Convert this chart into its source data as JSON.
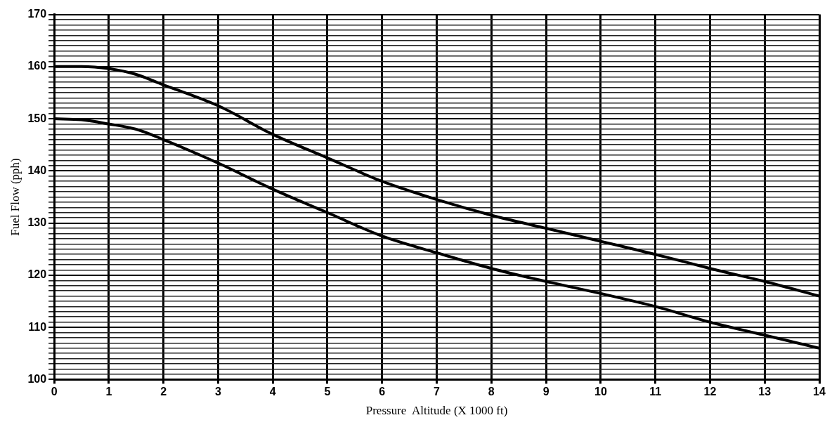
{
  "chart_data": {
    "type": "line",
    "xlabel": "Pressure  Altitude (X 1000 ft)",
    "ylabel": "Fuel Flow (pph)",
    "xlim": [
      0,
      14
    ],
    "xticks": [
      0,
      1,
      2,
      3,
      4,
      5,
      6,
      7,
      8,
      9,
      10,
      11,
      12,
      13,
      14
    ],
    "ylim": [
      100,
      170
    ],
    "yticks": [
      100,
      {
        "value": 101,
        "label": null
      },
      {
        "value": 102,
        "label": null
      },
      {
        "value": 103,
        "label": null
      },
      {
        "value": 104,
        "label": null
      },
      {
        "value": 105,
        "label": null
      },
      {
        "value": 106,
        "label": null
      },
      {
        "value": 107,
        "label": null
      },
      {
        "value": 108,
        "label": null
      },
      {
        "value": 109,
        "label": null
      },
      110,
      {
        "value": 111,
        "label": null
      },
      {
        "value": 112,
        "label": null
      },
      {
        "value": 113,
        "label": null
      },
      {
        "value": 114,
        "label": null
      },
      {
        "value": 115,
        "label": null
      },
      {
        "value": 116,
        "label": null
      },
      {
        "value": 117,
        "label": null
      },
      {
        "value": 118,
        "label": null
      },
      {
        "value": 119,
        "label": null
      },
      120,
      {
        "value": 121,
        "label": null
      },
      {
        "value": 122,
        "label": null
      },
      {
        "value": 123,
        "label": null
      },
      {
        "value": 124,
        "label": null
      },
      {
        "value": 125,
        "label": null
      },
      {
        "value": 126,
        "label": null
      },
      {
        "value": 127,
        "label": null
      },
      {
        "value": 128,
        "label": null
      },
      {
        "value": 129,
        "label": null
      },
      130,
      {
        "value": 131,
        "label": null
      },
      {
        "value": 132,
        "label": null
      },
      {
        "value": 133,
        "label": null
      },
      {
        "value": 134,
        "label": null
      },
      {
        "value": 135,
        "label": null
      },
      {
        "value": 136,
        "label": null
      },
      {
        "value": 137,
        "label": null
      },
      {
        "value": 138,
        "label": null
      },
      {
        "value": 139,
        "label": null
      },
      140,
      {
        "value": 141,
        "label": null
      },
      {
        "value": 142,
        "label": null
      },
      {
        "value": 143,
        "label": null
      },
      {
        "value": 144,
        "label": null
      },
      {
        "value": 145,
        "label": null
      },
      {
        "value": 146,
        "label": null
      },
      {
        "value": 147,
        "label": null
      },
      {
        "value": 148,
        "label": null
      },
      {
        "value": 149,
        "label": null
      },
      150,
      {
        "value": 151,
        "label": null
      },
      {
        "value": 152,
        "label": null
      },
      {
        "value": 153,
        "label": null
      },
      {
        "value": 154,
        "label": null
      },
      {
        "value": 155,
        "label": null
      },
      {
        "value": 156,
        "label": null
      },
      {
        "value": 157,
        "label": null
      },
      {
        "value": 158,
        "label": null
      },
      {
        "value": 159,
        "label": null
      },
      160,
      {
        "value": 161,
        "label": null
      },
      {
        "value": 162,
        "label": null
      },
      {
        "value": 163,
        "label": null
      },
      {
        "value": 164,
        "label": null
      },
      {
        "value": 165,
        "label": null
      },
      {
        "value": 166,
        "label": null
      },
      {
        "value": 167,
        "label": null
      },
      {
        "value": 168,
        "label": null
      },
      {
        "value": 169,
        "label": null
      },
      170
    ],
    "grid": true,
    "marker": "none",
    "line_style": "solid",
    "series": [
      {
        "color": "#000000",
        "x": [
          0,
          0.5,
          1,
          1.5,
          2,
          3,
          4,
          5,
          6,
          7,
          8,
          9,
          10,
          11,
          12,
          13,
          14
        ],
        "values": [
          160,
          160,
          159.6,
          158.5,
          156.5,
          152.5,
          147,
          142.5,
          138,
          134.5,
          131.5,
          129,
          126.5,
          124,
          121.3,
          118.8,
          116
        ]
      },
      {
        "color": "#000000",
        "x": [
          0,
          0.5,
          1,
          1.5,
          2,
          3,
          4,
          5,
          6,
          7,
          8,
          9,
          10,
          11,
          12,
          13,
          14
        ],
        "values": [
          150,
          149.8,
          149,
          148,
          146,
          141.5,
          136.5,
          132,
          127.5,
          124.3,
          121.3,
          118.8,
          116.5,
          114,
          111,
          108.5,
          106
        ]
      }
    ]
  }
}
